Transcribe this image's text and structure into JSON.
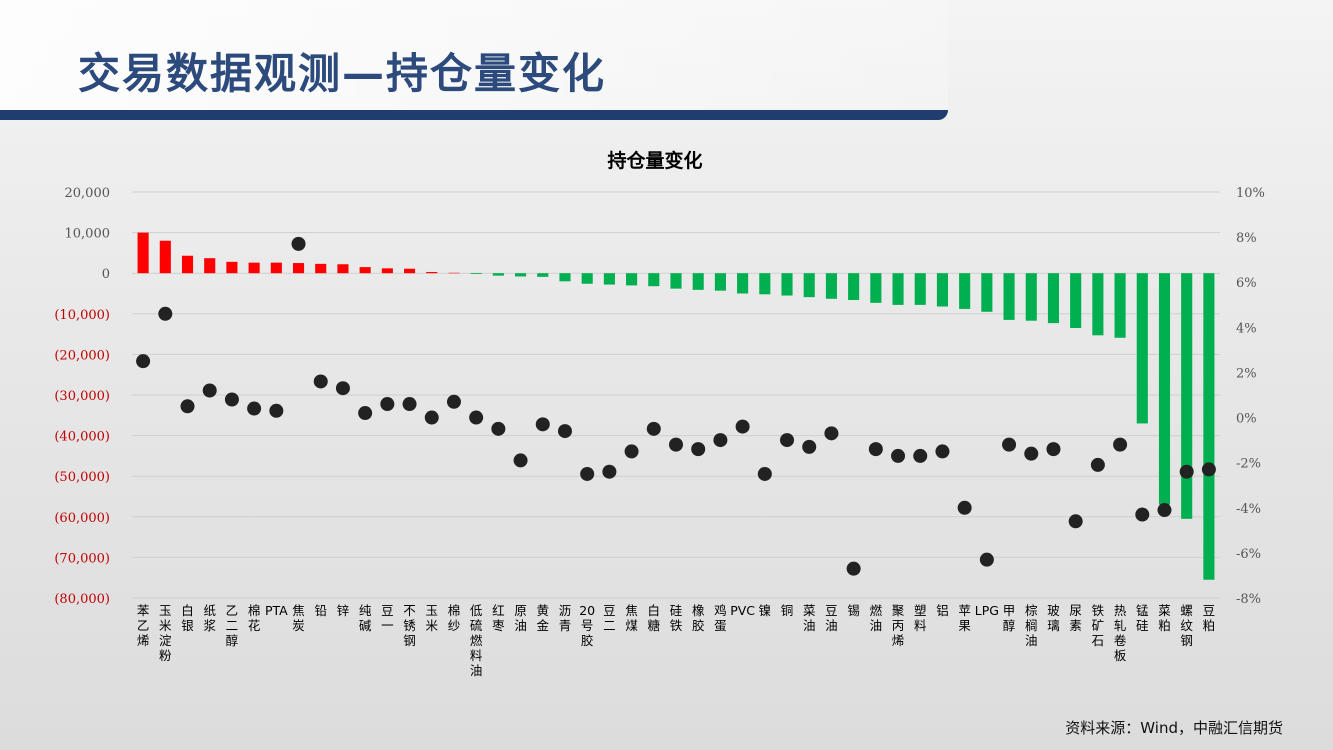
{
  "slide": {
    "title": "交易数据观测—持仓量变化",
    "source": "资料来源：Wind，中融汇信期货"
  },
  "colors": {
    "positive": "#ff0000",
    "negative": "#00b050",
    "dot": "#222222",
    "neg_tick": "#c00000"
  },
  "chart_data": {
    "type": "bar",
    "title": "持仓量变化",
    "left_axis": {
      "ylim": [
        -80000,
        20000
      ],
      "ticks": [
        20000,
        10000,
        0,
        -10000,
        -20000,
        -30000,
        -40000,
        -50000,
        -60000,
        -70000,
        -80000
      ],
      "tick_labels": [
        "20,000",
        "10,000",
        "0",
        "(10,000)",
        "(20,000)",
        "(30,000)",
        "(40,000)",
        "(50,000)",
        "(60,000)",
        "(70,000)",
        "(80,000)"
      ]
    },
    "right_axis": {
      "ylim": [
        -8,
        10
      ],
      "ticks": [
        10,
        8,
        6,
        4,
        2,
        0,
        -2,
        -4,
        -6,
        -8
      ],
      "tick_labels": [
        "10%",
        "8%",
        "6%",
        "4%",
        "2%",
        "0%",
        "-2%",
        "-4%",
        "-6%",
        "-8%"
      ]
    },
    "grid": true,
    "categories": [
      "苯乙烯",
      "玉米淀粉",
      "白银",
      "纸浆",
      "乙二醇",
      "棉花",
      "PTA",
      "焦炭",
      "铅",
      "锌",
      "纯碱",
      "豆一",
      "不锈钢",
      "玉米",
      "棉纱",
      "低硫燃料油",
      "红枣",
      "原油",
      "黄金",
      "沥青",
      "20号胶",
      "豆二",
      "焦煤",
      "白糖",
      "硅铁",
      "橡胶",
      "鸡蛋",
      "PVC",
      "镍",
      "铜",
      "菜油",
      "豆油",
      "锡",
      "燃油",
      "聚丙烯",
      "塑料",
      "铝",
      "苹果",
      "LPG",
      "甲醇",
      "棕榈油",
      "玻璃",
      "尿素",
      "铁矿石",
      "热轧卷板",
      "锰硅",
      "菜粕",
      "螺纹钢",
      "豆粕"
    ],
    "series": [
      {
        "type": "bar",
        "axis": "left",
        "values": [
          10000,
          8000,
          4300,
          3700,
          2800,
          2600,
          2600,
          2500,
          2300,
          2200,
          1500,
          1200,
          1100,
          300,
          100,
          -200,
          -600,
          -800,
          -900,
          -2000,
          -2600,
          -2800,
          -3000,
          -3200,
          -3800,
          -4100,
          -4300,
          -5000,
          -5200,
          -5500,
          -5900,
          -6300,
          -6600,
          -7300,
          -7800,
          -7800,
          -8200,
          -8800,
          -9500,
          -11500,
          -11700,
          -12300,
          -13500,
          -15300,
          -15900,
          -37000,
          -57000,
          -60500,
          -75500
        ]
      },
      {
        "type": "scatter",
        "axis": "right",
        "values": [
          2.5,
          4.6,
          0.5,
          1.2,
          0.8,
          0.4,
          0.3,
          7.7,
          1.6,
          1.3,
          0.2,
          0.6,
          0.6,
          0.0,
          0.7,
          0.0,
          -0.5,
          -1.9,
          -0.3,
          -0.6,
          -2.5,
          -2.4,
          -1.5,
          -0.5,
          -1.2,
          -1.4,
          -1.0,
          -0.4,
          -2.5,
          -1.0,
          -1.3,
          -0.7,
          -6.7,
          -1.4,
          -1.7,
          -1.7,
          -1.5,
          -4.0,
          -6.3,
          -1.2,
          -1.6,
          -1.4,
          -4.6,
          -2.1,
          -1.2,
          -4.3,
          -4.1,
          -2.4,
          -2.3
        ]
      }
    ]
  }
}
